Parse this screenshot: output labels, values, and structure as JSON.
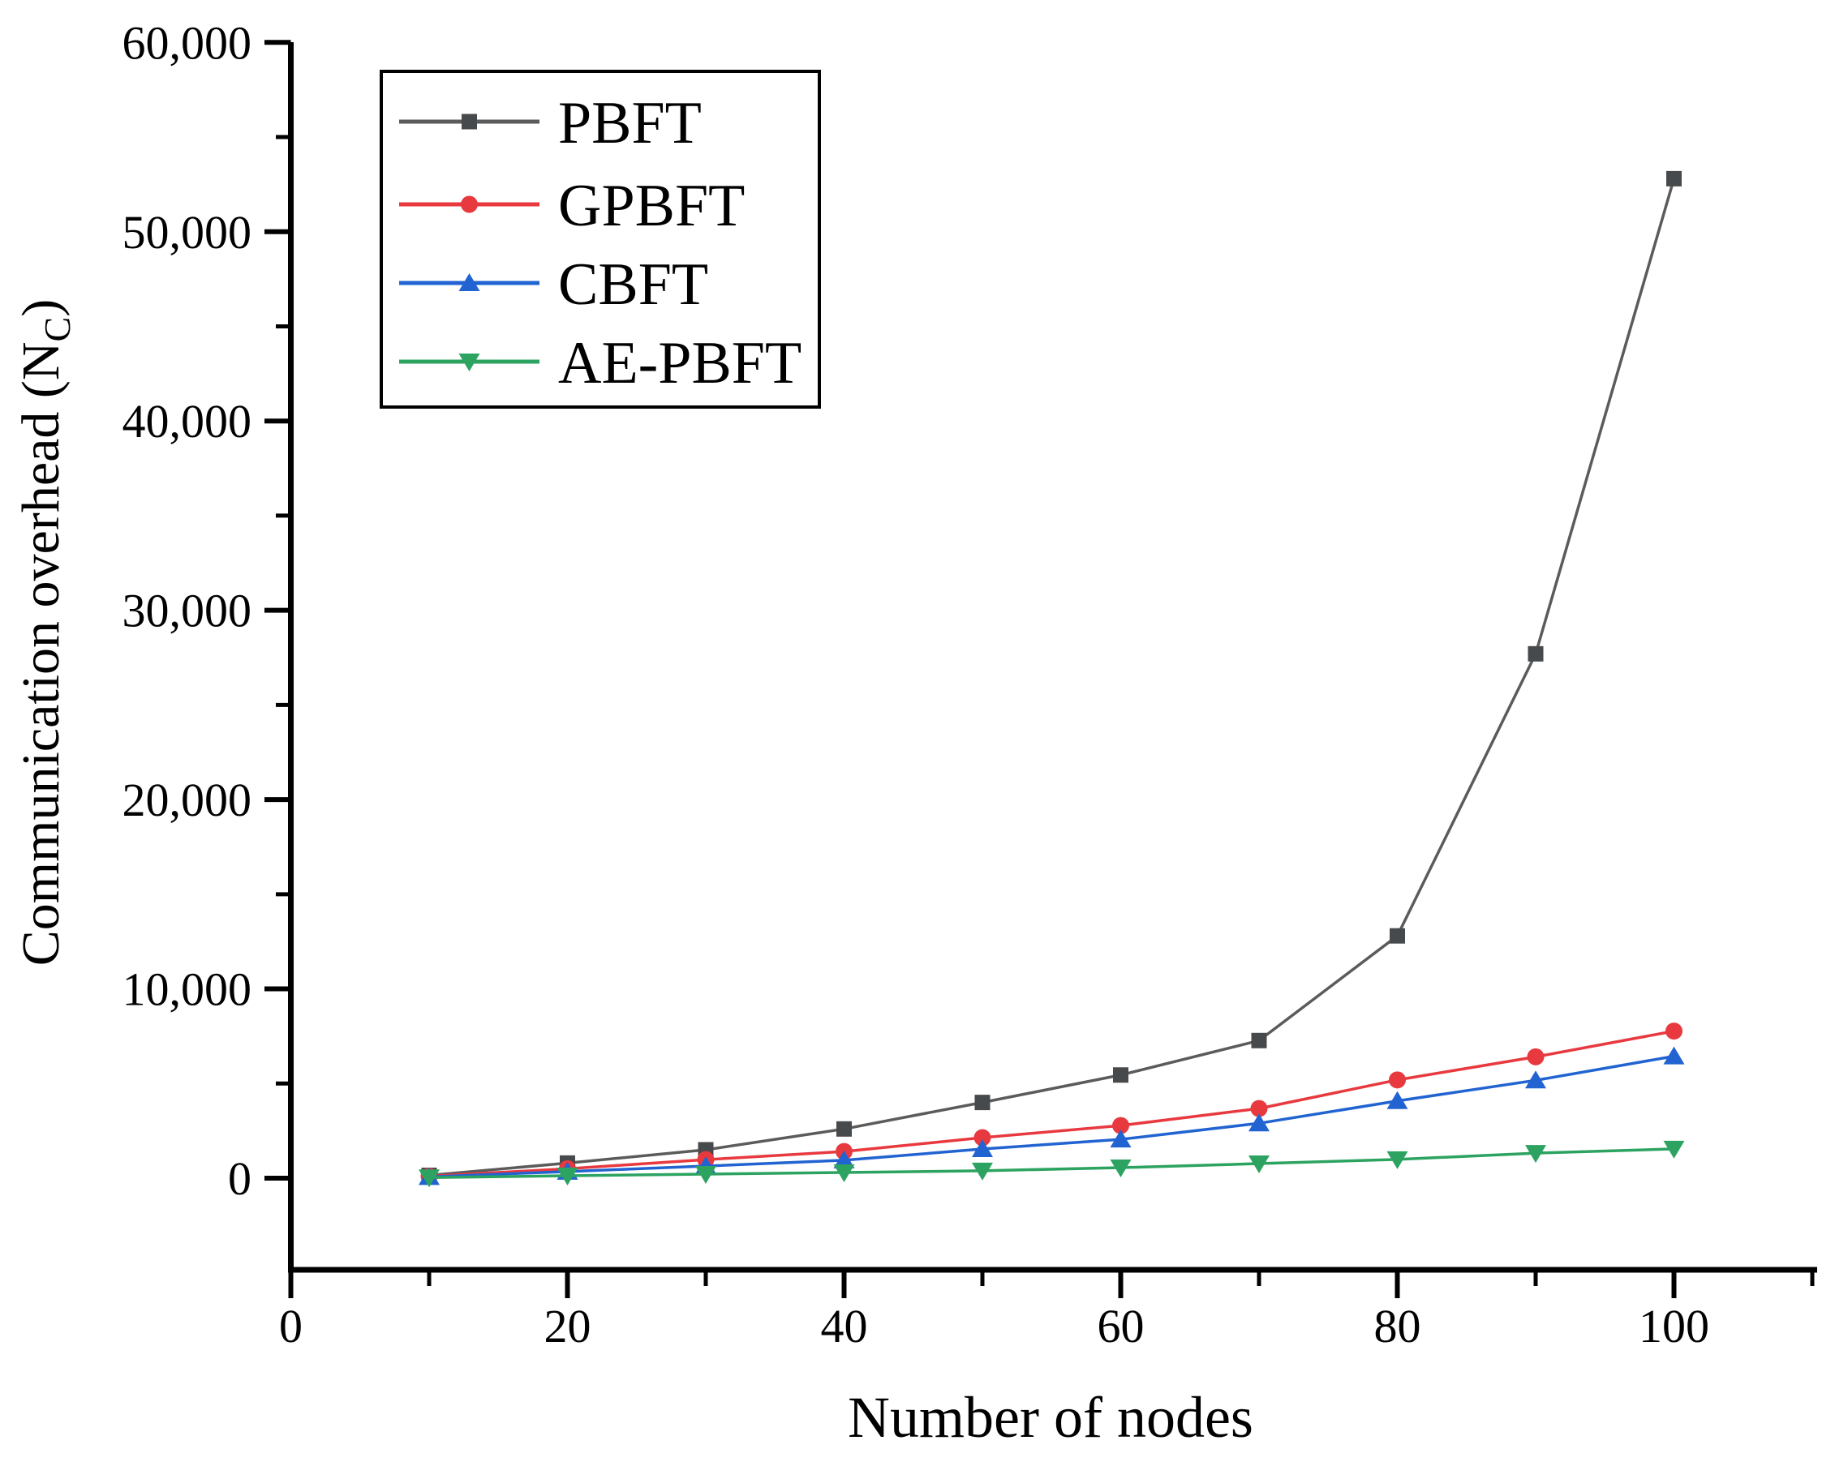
{
  "figure": {
    "background": "#ffffff",
    "axis_color": "#000000"
  },
  "chart_data": {
    "type": "line",
    "title": "",
    "xlabel": "Number of nodes",
    "ylabel": "Communication overhead (N_C)",
    "ylabel_parts": {
      "main": "Communication overhead (N",
      "subscript": "C",
      "close": ")"
    },
    "xlim": [
      0,
      110
    ],
    "ylim": [
      -5000,
      60000
    ],
    "grid": false,
    "legend_position": "upper-left",
    "x_major_ticks": [
      0,
      20,
      40,
      60,
      80,
      100
    ],
    "x_major_tick_labels": [
      "0",
      "20",
      "40",
      "60",
      "80",
      "100"
    ],
    "x_minor_ticks": [
      10,
      30,
      50,
      70,
      90,
      110
    ],
    "y_major_ticks": [
      0,
      10000,
      20000,
      30000,
      40000,
      50000,
      60000
    ],
    "y_major_tick_labels": [
      "0",
      "10,000",
      "20,000",
      "30,000",
      "40,000",
      "50,000",
      "60,000"
    ],
    "y_minor_ticks": [
      5000,
      15000,
      25000,
      35000,
      45000,
      55000
    ],
    "x": [
      10,
      20,
      30,
      40,
      50,
      60,
      70,
      80,
      90,
      100
    ],
    "series": [
      {
        "name": "PBFT",
        "marker": "square",
        "color": "#5b5b5b",
        "marker_color": "#474a4c",
        "values": [
          150,
          800,
          1500,
          2600,
          4000,
          5450,
          7270,
          12800,
          27700,
          52800
        ]
      },
      {
        "name": "GPBFT",
        "marker": "circle",
        "color": "#e8393f",
        "marker_color": "#e8393f",
        "values": [
          100,
          500,
          980,
          1410,
          2140,
          2780,
          3680,
          5190,
          6410,
          7770
        ]
      },
      {
        "name": "CBFT",
        "marker": "triangle-up",
        "color": "#2164d1",
        "marker_color": "#2164d1",
        "values": [
          70,
          350,
          640,
          950,
          1540,
          2050,
          2900,
          4080,
          5170,
          6440
        ]
      },
      {
        "name": "AE-PBFT",
        "marker": "triangle-down",
        "color": "#2ca360",
        "marker_color": "#2ca360",
        "values": [
          30,
          130,
          215,
          300,
          390,
          555,
          770,
          990,
          1325,
          1545
        ]
      }
    ],
    "legend_entries": [
      "PBFT",
      "GPBFT",
      "CBFT",
      "AE-PBFT"
    ]
  }
}
